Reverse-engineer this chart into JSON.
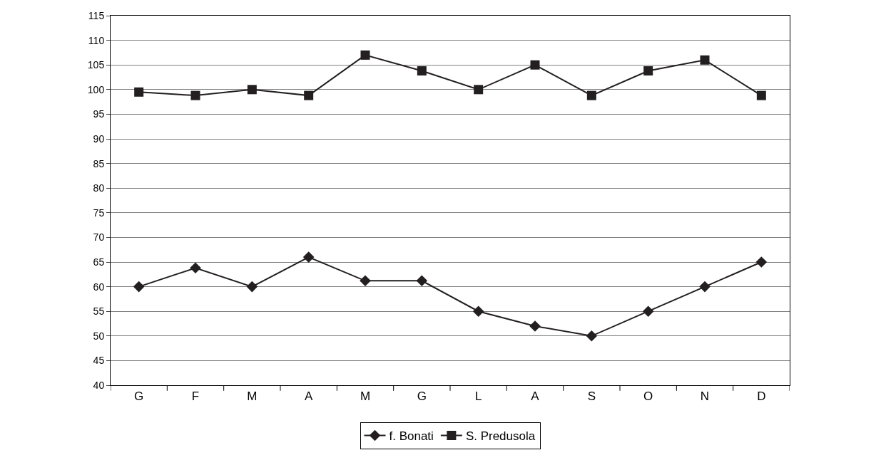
{
  "chart_data": {
    "type": "line",
    "categories": [
      "G",
      "F",
      "M",
      "A",
      "M",
      "G",
      "L",
      "A",
      "S",
      "O",
      "N",
      "D"
    ],
    "series": [
      {
        "name": "f. Bonati",
        "color": "#231f20",
        "marker": "diamond",
        "values": [
          60,
          63.8,
          60,
          66,
          61.2,
          61.2,
          55,
          52,
          50,
          55,
          60,
          65
        ]
      },
      {
        "name": "S. Predusola",
        "color": "#231f20",
        "marker": "square",
        "values": [
          99.5,
          98.8,
          100,
          98.8,
          107,
          103.8,
          100,
          105,
          98.8,
          103.8,
          106,
          98.8
        ]
      }
    ],
    "ylim": [
      40,
      115
    ],
    "yticks": [
      40,
      45,
      50,
      55,
      60,
      65,
      70,
      75,
      80,
      85,
      90,
      95,
      100,
      105,
      110,
      115
    ],
    "grid": "y",
    "legend": "bottom",
    "line_style": "solid"
  }
}
